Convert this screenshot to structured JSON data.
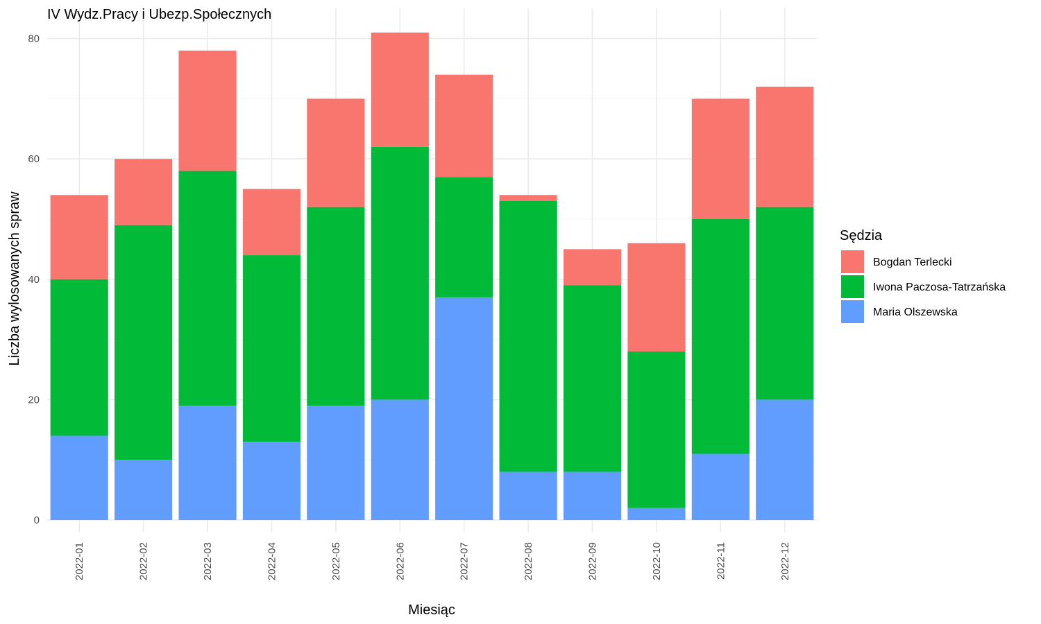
{
  "chart_data": {
    "type": "bar",
    "stacked": true,
    "title": "IV Wydz.Pracy i Ubezp.Społecznych",
    "xlabel": "Miesiąc",
    "ylabel": "Liczba wylosowanych spraw",
    "ylim": [
      0,
      81
    ],
    "yticks": [
      "0",
      "20",
      "40",
      "60",
      "80"
    ],
    "grid": true,
    "legend": {
      "title": "Sędzia",
      "placement": "right"
    },
    "categories": [
      "2022-01",
      "2022-02",
      "2022-03",
      "2022-04",
      "2022-05",
      "2022-06",
      "2022-07",
      "2022-08",
      "2022-09",
      "2022-10",
      "2022-11",
      "2022-12"
    ],
    "series": [
      {
        "name": "Maria Olszewska",
        "color": "#619CFF",
        "values": [
          14,
          10,
          19,
          13,
          19,
          20,
          37,
          8,
          8,
          2,
          11,
          20
        ]
      },
      {
        "name": "Iwona Paczosa-Tatrzańska",
        "color": "#00BA38",
        "values": [
          26,
          39,
          39,
          31,
          33,
          42,
          20,
          45,
          31,
          26,
          39,
          32
        ]
      },
      {
        "name": "Bogdan Terlecki",
        "color": "#F8766D",
        "values": [
          14,
          11,
          20,
          11,
          18,
          19,
          17,
          1,
          6,
          18,
          20,
          20
        ]
      }
    ],
    "legend_order": [
      "Bogdan Terlecki",
      "Iwona Paczosa-Tatrzańska",
      "Maria Olszewska"
    ]
  }
}
